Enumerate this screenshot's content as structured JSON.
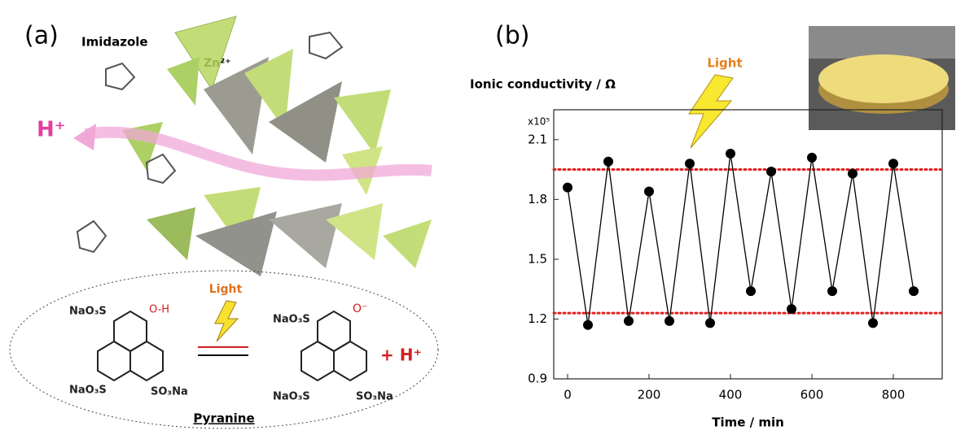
{
  "panel_a": {
    "label": "(a)",
    "imidazole": "Imidazole",
    "zinc": "Zn²⁺",
    "proton": "H⁺",
    "light": "Light",
    "left_molecule": {
      "top_group": "NaO₃S",
      "hydroxyl": "O-H",
      "bottom_left": "NaO₃S",
      "bottom_right": "SO₃Na"
    },
    "right_molecule": {
      "top_group": "NaO₃S",
      "oxide": "O⁻",
      "bottom_left": "NaO₃S",
      "bottom_right": "SO₃Na"
    },
    "released_proton": "+ H⁺",
    "caption": "Pyranine"
  },
  "chart_data": {
    "type": "line",
    "panel_label": "(b)",
    "y_label": "Ionic conductivity / Ω",
    "x_label": "Time / min",
    "y_multiplier": "x10⁵",
    "annotation": "Light",
    "x": [
      0,
      50,
      100,
      150,
      200,
      250,
      300,
      350,
      400,
      450,
      500,
      550,
      600,
      650,
      700,
      750,
      800,
      850
    ],
    "series": [
      {
        "color": "#000000",
        "values": [
          1.86,
          1.17,
          1.99,
          1.19,
          1.84,
          1.19,
          1.98,
          1.18,
          2.03,
          1.34,
          1.94,
          1.25,
          2.01,
          1.34,
          1.93,
          1.18,
          1.98,
          1.34
        ]
      }
    ],
    "ref_lines": {
      "color": "#e02020",
      "values": [
        1.95,
        1.23
      ]
    },
    "xlim": [
      -34,
      920
    ],
    "ylim": [
      0.9,
      2.25
    ],
    "xticks": [
      0,
      200,
      400,
      600,
      800
    ],
    "yticks": [
      0.9,
      {
        "value": 1.2,
        "label": "1.2"
      },
      1.5,
      1.8,
      2.1
    ]
  }
}
